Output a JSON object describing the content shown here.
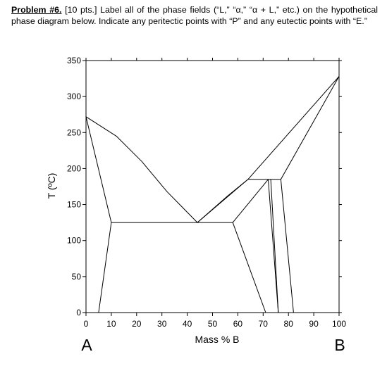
{
  "problem": {
    "label": "Problem #6.",
    "body": " [10 pts.] Label all of the phase fields (“L,” “α,” “α + L,” etc.) on the hypothetical phase diagram below. Indicate any peritectic points with “P” and any eutectic points with “E.”"
  },
  "chart_data": {
    "type": "line",
    "xlabel": "Mass % B",
    "ylabel": "T (ºC)",
    "xlim": [
      0,
      100
    ],
    "ylim": [
      0,
      350
    ],
    "x_ticks": [
      "0",
      "10",
      "20",
      "30",
      "40",
      "50",
      "60",
      "70",
      "80",
      "90",
      "100"
    ],
    "y_ticks": [
      "0",
      "50",
      "100",
      "150",
      "200",
      "250",
      "300",
      "350"
    ],
    "x_tick_values": [
      0,
      10,
      20,
      30,
      40,
      50,
      60,
      70,
      80,
      90,
      100
    ],
    "y_tick_values": [
      0,
      50,
      100,
      150,
      200,
      250,
      300,
      350
    ],
    "component_left": "A",
    "component_right": "B",
    "grid": false,
    "lines": [
      {
        "name": "liquidus-a",
        "points": [
          [
            0,
            272
          ],
          [
            12,
            245
          ],
          [
            22,
            210
          ],
          [
            32,
            168
          ],
          [
            44,
            125
          ]
        ]
      },
      {
        "name": "solidus-a",
        "points": [
          [
            0,
            272
          ],
          [
            10,
            125
          ]
        ]
      },
      {
        "name": "solvus-a",
        "points": [
          [
            10,
            125
          ],
          [
            5,
            0
          ]
        ]
      },
      {
        "name": "eutectic-isotherm",
        "points": [
          [
            10,
            125
          ],
          [
            58,
            125
          ]
        ]
      },
      {
        "name": "liquidus-mid",
        "points": [
          [
            44,
            125
          ],
          [
            56,
            162
          ],
          [
            64,
            185
          ]
        ]
      },
      {
        "name": "solidus-mid-left",
        "points": [
          [
            44,
            125
          ],
          [
            64,
            185
          ]
        ]
      },
      {
        "name": "solvus-mid-left",
        "points": [
          [
            58,
            125
          ],
          [
            71,
            0
          ]
        ]
      },
      {
        "name": "solidus-mid-right",
        "points": [
          [
            58,
            125
          ],
          [
            72,
            185
          ]
        ]
      },
      {
        "name": "peritectic-isotherm",
        "points": [
          [
            64,
            185
          ],
          [
            77,
            185
          ]
        ]
      },
      {
        "name": "compound-phase-left",
        "points": [
          [
            72,
            185
          ],
          [
            76,
            0
          ]
        ]
      },
      {
        "name": "compound-phase-right",
        "points": [
          [
            73,
            185
          ],
          [
            76,
            0
          ]
        ]
      },
      {
        "name": "liquidus-b",
        "points": [
          [
            64,
            185
          ],
          [
            100,
            328
          ]
        ]
      },
      {
        "name": "solidus-b",
        "points": [
          [
            77,
            185
          ],
          [
            100,
            328
          ]
        ]
      },
      {
        "name": "solvus-b",
        "points": [
          [
            77,
            185
          ],
          [
            82,
            0
          ]
        ]
      }
    ]
  }
}
